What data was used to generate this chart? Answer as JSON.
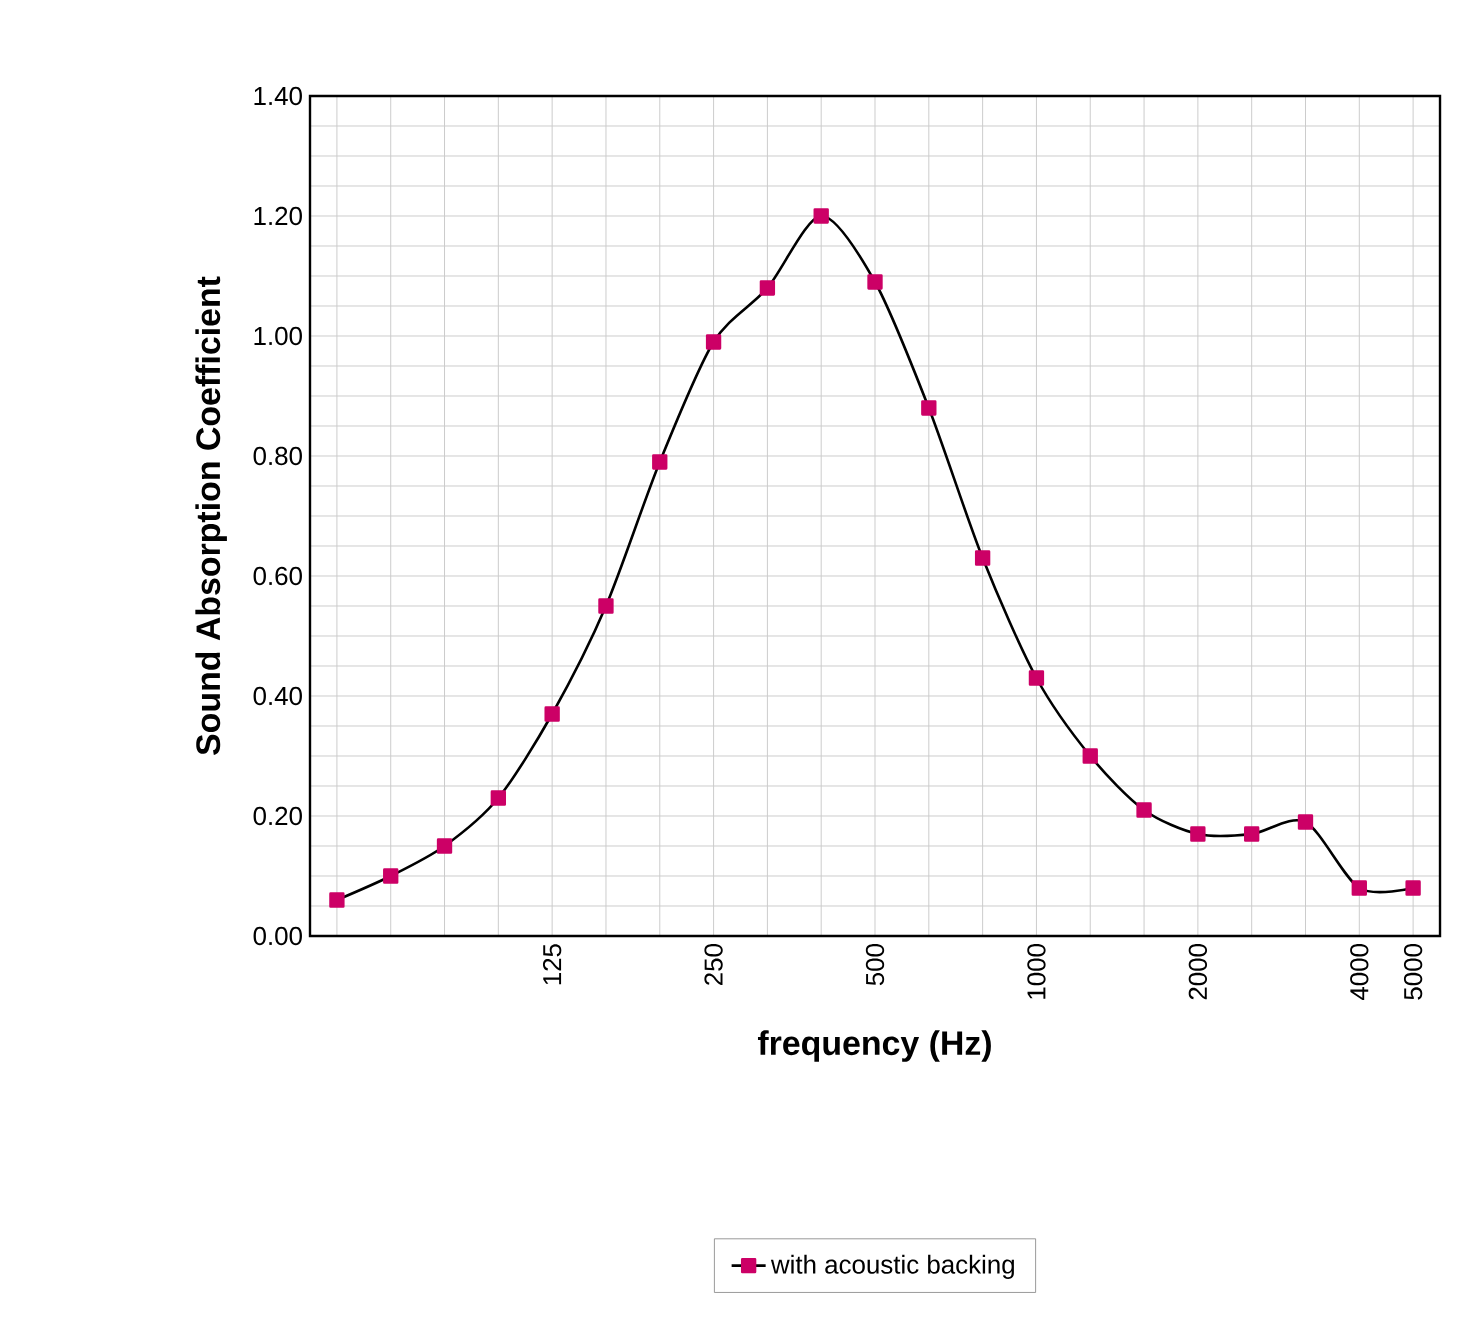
{
  "chart_data": {
    "type": "line",
    "xlabel": "frequency (Hz)",
    "ylabel": "Sound Absorption Coefficient",
    "categories": [
      null,
      null,
      null,
      null,
      "125",
      null,
      null,
      "250",
      null,
      null,
      "500",
      null,
      null,
      "1000",
      null,
      null,
      "2000",
      null,
      null,
      "4000",
      "5000"
    ],
    "series": [
      {
        "name": "with acoustic backing",
        "color": "#cc0066",
        "values": [
          0.06,
          0.1,
          0.15,
          0.23,
          0.37,
          0.55,
          0.79,
          0.99,
          1.08,
          1.2,
          1.09,
          0.88,
          0.63,
          0.43,
          0.3,
          0.21,
          0.17,
          0.17,
          0.19,
          0.08,
          0.08
        ]
      }
    ],
    "ylim": [
      0,
      1.4
    ],
    "yticks": [
      {
        "value": 0,
        "label": "0.00"
      },
      {
        "value": 0.05,
        "label": null
      },
      {
        "value": 0.1,
        "label": null
      },
      {
        "value": 0.15,
        "label": null
      },
      {
        "value": 0.2,
        "label": "0.20"
      },
      {
        "value": 0.25,
        "label": null
      },
      {
        "value": 0.3,
        "label": null
      },
      {
        "value": 0.35,
        "label": null
      },
      {
        "value": 0.4,
        "label": "0.40"
      },
      {
        "value": 0.45,
        "label": null
      },
      {
        "value": 0.5,
        "label": null
      },
      {
        "value": 0.55,
        "label": null
      },
      {
        "value": 0.6,
        "label": "0.60"
      },
      {
        "value": 0.65,
        "label": null
      },
      {
        "value": 0.7,
        "label": null
      },
      {
        "value": 0.75,
        "label": null
      },
      {
        "value": 0.8,
        "label": "0.80"
      },
      {
        "value": 0.85,
        "label": null
      },
      {
        "value": 0.9,
        "label": null
      },
      {
        "value": 0.95,
        "label": null
      },
      {
        "value": 1.0,
        "label": "1.00"
      },
      {
        "value": 1.05,
        "label": null
      },
      {
        "value": 1.1,
        "label": null
      },
      {
        "value": 1.15,
        "label": null
      },
      {
        "value": 1.2,
        "label": "1.20"
      },
      {
        "value": 1.25,
        "label": null
      },
      {
        "value": 1.3,
        "label": null
      },
      {
        "value": 1.35,
        "label": null
      },
      {
        "value": 1.4,
        "label": "1.40"
      }
    ],
    "grid": true,
    "legend": "bottom",
    "marker": "square",
    "line_style": "solid"
  }
}
